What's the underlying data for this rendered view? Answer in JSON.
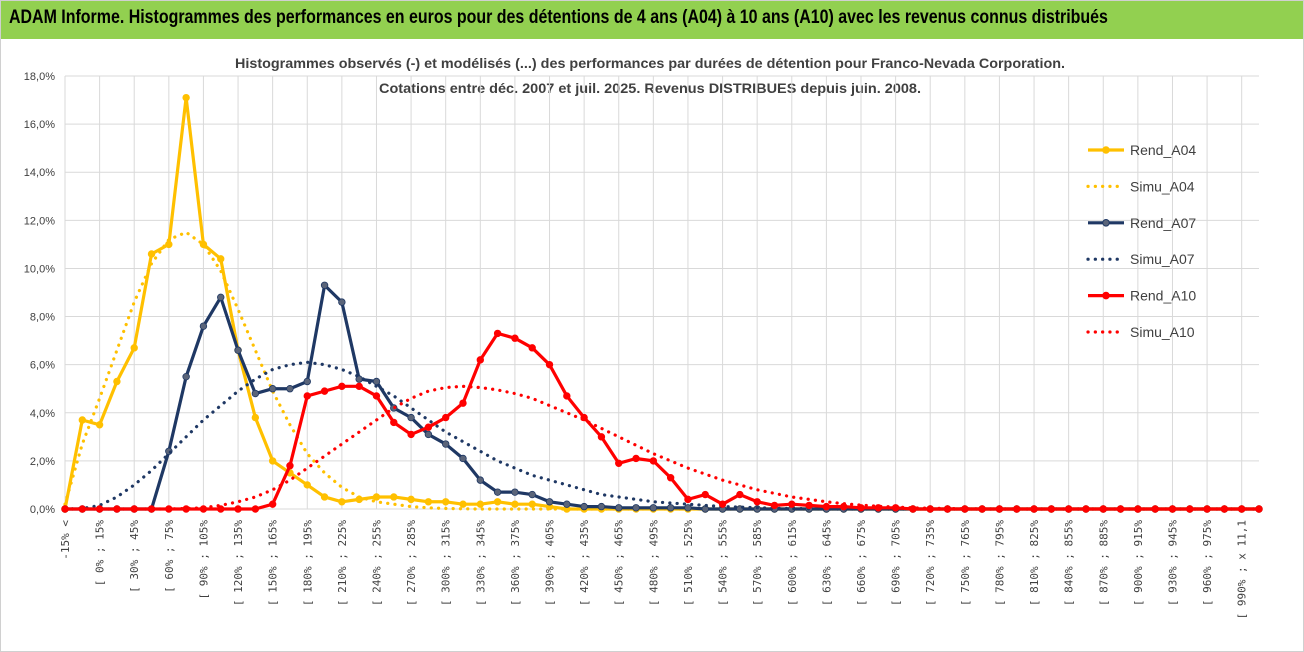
{
  "banner": {
    "title": "ADAM Informe. Histogrammes des performances en euros pour des détentions de 4 ans (A04) à 10 ans (A10) avec les revenus connus distribués"
  },
  "colors": {
    "banner": "#92d050",
    "A04": "#ffc000",
    "A07": "#1f3864",
    "A10": "#ff0000",
    "grid": "#d9d9d9"
  },
  "chart_data": {
    "type": "line",
    "title_lines": [
      "Histogrammes observés (-) et modélisés (...) des performances par durées de détention pour Franco-Nevada Corporation.",
      "Cotations entre déc. 2007 et juil. 2025. Revenus DISTRIBUES depuis juin. 2008."
    ],
    "ylim": [
      0,
      18
    ],
    "yticks": [
      "0,0%",
      "2,0%",
      "4,0%",
      "6,0%",
      "8,0%",
      "10,0%",
      "12,0%",
      "14,0%",
      "16,0%",
      "18,0%"
    ],
    "grid": true,
    "legend_position": "right",
    "x_tick_labels": [
      "-15% <",
      "[ 0% ; 15%",
      "[ 30% ; 45%",
      "[ 60% ; 75%",
      "[ 90% ; 105%",
      "[ 120% ; 135%",
      "[ 150% ; 165%",
      "[ 180% ; 195%",
      "[ 210% ; 225%",
      "[ 240% ; 255%",
      "[ 270% ; 285%",
      "[ 300% ; 315%",
      "[ 330% ; 345%",
      "[ 360% ; 375%",
      "[ 390% ; 405%",
      "[ 420% ; 435%",
      "[ 450% ; 465%",
      "[ 480% ; 495%",
      "[ 510% ; 525%",
      "[ 540% ; 555%",
      "[ 570% ; 585%",
      "[ 600% ; 615%",
      "[ 630% ; 645%",
      "[ 660% ; 675%",
      "[ 690% ; 705%",
      "[ 720% ; 735%",
      "[ 750% ; 765%",
      "[ 780% ; 795%",
      "[ 810% ; 825%",
      "[ 840% ; 855%",
      "[ 870% ; 885%",
      "[ 900% ; 915%",
      "[ 930% ; 945%",
      "[ 960% ; 975%",
      "[ 990% ; x 11,1"
    ],
    "series": [
      {
        "name": "Rend_A04",
        "style": "solid",
        "color": "#ffc000",
        "values": [
          0,
          3.7,
          3.5,
          5.3,
          6.7,
          10.6,
          11.0,
          17.1,
          11.0,
          10.4,
          6.6,
          3.8,
          2.0,
          1.5,
          1.0,
          0.5,
          0.3,
          0.4,
          0.5,
          0.5,
          0.4,
          0.3,
          0.3,
          0.2,
          0.2,
          0.3,
          0.2,
          0.2,
          0.1,
          0.0,
          0.0,
          0.0,
          0.0,
          0.0,
          0.0,
          0.0,
          0.0,
          0.0,
          0.0,
          0.0,
          0.0,
          0.0,
          0.0,
          0.0,
          0.0,
          0.0,
          0.0,
          0.0,
          0.0,
          0.0,
          0.0,
          0.0,
          0.0,
          0.0,
          0.0,
          0.0,
          0.0,
          0.0,
          0.0,
          0.0,
          0.0,
          0.0,
          0.0,
          0.0,
          0.0,
          0.0,
          0.0,
          0.0,
          0.0,
          0.0
        ]
      },
      {
        "name": "Simu_A04",
        "style": "dotted",
        "color": "#ffc000",
        "values": [
          0.2,
          2.7,
          4.6,
          6.6,
          8.6,
          10.2,
          11.2,
          11.5,
          11.0,
          9.9,
          8.3,
          6.6,
          4.9,
          3.5,
          2.3,
          1.5,
          0.9,
          0.5,
          0.3,
          0.2,
          0.1,
          0.05,
          0.02,
          0.01,
          0.0,
          0.0,
          0.0,
          0.0,
          0.0,
          0.0,
          0.0,
          0.0,
          0.0,
          0.0,
          0.0,
          0.0,
          0.0,
          0.0,
          0.0,
          0.0,
          0.0,
          0.0,
          0.0,
          0.0,
          0.0,
          0.0,
          0.0,
          0.0,
          0.0,
          0.0,
          0.0,
          0.0,
          0.0,
          0.0,
          0.0,
          0.0,
          0.0,
          0.0,
          0.0,
          0.0,
          0.0,
          0.0,
          0.0,
          0.0,
          0.0,
          0.0,
          0.0,
          0.0,
          0.0,
          0.0
        ]
      },
      {
        "name": "Rend_A07",
        "style": "solid",
        "color": "#1f3864",
        "values": [
          0,
          0,
          0,
          0,
          0,
          0,
          2.4,
          5.5,
          7.6,
          8.8,
          6.6,
          4.8,
          5.0,
          5.0,
          5.3,
          9.3,
          8.6,
          5.4,
          5.3,
          4.2,
          3.8,
          3.1,
          2.7,
          2.1,
          1.2,
          0.7,
          0.7,
          0.6,
          0.3,
          0.2,
          0.1,
          0.1,
          0.05,
          0.05,
          0.05,
          0.05,
          0.05,
          0.0,
          0.0,
          0.0,
          0.0,
          0.0,
          0.0,
          0.0,
          0.0,
          0.0,
          0.0,
          0.0,
          0.0,
          0.0,
          0.0,
          0.0,
          0.0,
          0.0,
          0.0,
          0.0,
          0.0,
          0.0,
          0.0,
          0.0,
          0.0,
          0.0,
          0.0,
          0.0,
          0.0,
          0.0,
          0.0,
          0.0,
          0.0,
          0.0
        ]
      },
      {
        "name": "Simu_A07",
        "style": "dotted",
        "color": "#1f3864",
        "values": [
          0,
          0.02,
          0.15,
          0.5,
          1.0,
          1.6,
          2.3,
          3.0,
          3.7,
          4.3,
          4.9,
          5.4,
          5.8,
          6.0,
          6.1,
          6.0,
          5.8,
          5.5,
          5.1,
          4.7,
          4.2,
          3.7,
          3.2,
          2.8,
          2.4,
          2.0,
          1.7,
          1.4,
          1.2,
          1.0,
          0.8,
          0.6,
          0.5,
          0.4,
          0.3,
          0.25,
          0.2,
          0.15,
          0.1,
          0.08,
          0.05,
          0.03,
          0.02,
          0.01,
          0.0,
          0.0,
          0.0,
          0.0,
          0.0,
          0.0,
          0.0,
          0.0,
          0.0,
          0.0,
          0.0,
          0.0,
          0.0,
          0.0,
          0.0,
          0.0,
          0.0,
          0.0,
          0.0,
          0.0,
          0.0,
          0.0,
          0.0,
          0.0,
          0.0,
          0.0
        ]
      },
      {
        "name": "Simu_A10",
        "style": "dotted",
        "color": "#ff0000",
        "values": [
          0,
          0,
          0,
          0,
          0,
          0,
          0,
          0.02,
          0.05,
          0.15,
          0.3,
          0.5,
          0.8,
          1.2,
          1.7,
          2.2,
          2.7,
          3.2,
          3.7,
          4.2,
          4.6,
          4.9,
          5.05,
          5.1,
          5.05,
          4.95,
          4.8,
          4.6,
          4.3,
          4.0,
          3.7,
          3.35,
          3.0,
          2.65,
          2.3,
          2.0,
          1.7,
          1.45,
          1.2,
          1.0,
          0.8,
          0.65,
          0.5,
          0.4,
          0.3,
          0.22,
          0.16,
          0.11,
          0.08,
          0.05,
          0.03,
          0.02,
          0.01,
          0.0,
          0.0,
          0.0,
          0.0,
          0.0,
          0.0,
          0.0,
          0.0,
          0.0,
          0.0,
          0.0,
          0.0,
          0.0,
          0.0,
          0.0,
          0.0,
          0.0
        ]
      },
      {
        "name": "Rend_A10",
        "style": "solid",
        "color": "#ff0000",
        "values": [
          0,
          0,
          0,
          0,
          0,
          0,
          0,
          0,
          0,
          0,
          0,
          0,
          0.2,
          1.8,
          4.7,
          4.9,
          5.1,
          5.1,
          4.7,
          3.6,
          3.1,
          3.4,
          3.8,
          4.4,
          6.2,
          7.3,
          7.1,
          6.7,
          6.0,
          4.7,
          3.8,
          3.0,
          1.9,
          2.1,
          2.0,
          1.3,
          0.4,
          0.6,
          0.2,
          0.6,
          0.3,
          0.15,
          0.2,
          0.15,
          0.1,
          0.1,
          0.05,
          0.05,
          0.05,
          0.0,
          0.0,
          0.0,
          0.0,
          0.0,
          0.0,
          0.0,
          0.0,
          0.0,
          0.0,
          0.0,
          0.0,
          0.0,
          0.0,
          0.0,
          0.0,
          0.0,
          0.0,
          0.0,
          0.0,
          0.0
        ]
      }
    ],
    "legend_order": [
      "Rend_A04",
      "Simu_A04",
      "Rend_A07",
      "Simu_A07",
      "Rend_A10",
      "Simu_A10"
    ]
  }
}
